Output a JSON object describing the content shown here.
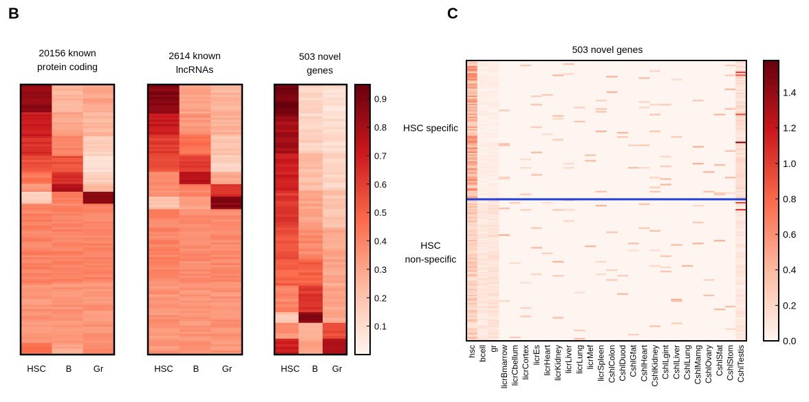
{
  "panels": {
    "b": {
      "letter": "B"
    },
    "c": {
      "letter": "C"
    }
  },
  "colors": {
    "scale_low": "#fff5f0",
    "scale_mid": "#fb6a4a",
    "scale_high": "#67000d",
    "separator": "#1f3fd6",
    "frame": "#000000"
  },
  "chart_data": [
    {
      "type": "heatmap",
      "title_lines": [
        "20156 known",
        "protein coding"
      ],
      "columns": [
        "HSC",
        "B",
        "Gr"
      ],
      "segments": [
        {
          "rows": 14,
          "values": [
            0.85,
            0.25,
            0.3
          ]
        },
        {
          "rows": 12,
          "values": [
            0.7,
            0.3,
            0.25
          ]
        },
        {
          "rows": 10,
          "values": [
            0.65,
            0.4,
            0.15
          ]
        },
        {
          "rows": 8,
          "values": [
            0.55,
            0.55,
            0.1
          ]
        },
        {
          "rows": 6,
          "values": [
            0.45,
            0.65,
            0.15
          ]
        },
        {
          "rows": 4,
          "values": [
            0.35,
            0.8,
            0.25
          ]
        },
        {
          "rows": 6,
          "values": [
            0.15,
            0.4,
            0.85
          ]
        },
        {
          "rows": 40,
          "values": [
            0.4,
            0.4,
            0.4
          ]
        },
        {
          "rows": 30,
          "values": [
            0.35,
            0.35,
            0.35
          ]
        },
        {
          "rows": 6,
          "values": [
            0.45,
            0.3,
            0.4
          ]
        }
      ],
      "vmin": 0.0,
      "vmax": 0.95
    },
    {
      "type": "heatmap",
      "title_lines": [
        "2614 known",
        "lncRNAs"
      ],
      "columns": [
        "HSC",
        "B",
        "Gr"
      ],
      "segments": [
        {
          "rows": 14,
          "values": [
            0.88,
            0.3,
            0.25
          ]
        },
        {
          "rows": 10,
          "values": [
            0.72,
            0.35,
            0.28
          ]
        },
        {
          "rows": 10,
          "values": [
            0.6,
            0.45,
            0.2
          ]
        },
        {
          "rows": 8,
          "values": [
            0.55,
            0.6,
            0.15
          ]
        },
        {
          "rows": 6,
          "values": [
            0.4,
            0.78,
            0.3
          ]
        },
        {
          "rows": 6,
          "values": [
            0.35,
            0.4,
            0.65
          ]
        },
        {
          "rows": 6,
          "values": [
            0.2,
            0.3,
            0.88
          ]
        },
        {
          "rows": 35,
          "values": [
            0.4,
            0.38,
            0.38
          ]
        },
        {
          "rows": 35,
          "values": [
            0.35,
            0.35,
            0.35
          ]
        }
      ],
      "vmin": 0.0,
      "vmax": 0.95
    },
    {
      "type": "heatmap",
      "title_lines": [
        "503 novel",
        "genes"
      ],
      "columns": [
        "HSC",
        "B",
        "Gr"
      ],
      "segments": [
        {
          "rows": 12,
          "values": [
            0.92,
            0.12,
            0.08
          ]
        },
        {
          "rows": 14,
          "values": [
            0.8,
            0.15,
            0.1
          ]
        },
        {
          "rows": 14,
          "values": [
            0.7,
            0.22,
            0.14
          ]
        },
        {
          "rows": 14,
          "values": [
            0.62,
            0.3,
            0.2
          ]
        },
        {
          "rows": 12,
          "values": [
            0.55,
            0.38,
            0.3
          ]
        },
        {
          "rows": 10,
          "values": [
            0.5,
            0.5,
            0.3
          ]
        },
        {
          "rows": 10,
          "values": [
            0.4,
            0.62,
            0.3
          ]
        },
        {
          "rows": 4,
          "values": [
            0.2,
            0.88,
            0.3
          ]
        },
        {
          "rows": 6,
          "values": [
            0.35,
            0.25,
            0.55
          ]
        },
        {
          "rows": 6,
          "values": [
            0.7,
            0.3,
            0.8
          ]
        }
      ],
      "vmin": 0.0,
      "vmax": 0.95,
      "colorbar_ticks": [
        0.1,
        0.2,
        0.3,
        0.4,
        0.5,
        0.6,
        0.7,
        0.8,
        0.9
      ],
      "colorbar_labels": [
        "0.1",
        "0.2",
        "0.3",
        "0.4",
        "0.5",
        "0.6",
        "0.7",
        "0.8",
        "0.9"
      ]
    },
    {
      "type": "heatmap",
      "title": "503 novel genes",
      "columns": [
        "hsc",
        "bcell",
        "gr",
        "licrBmarrow",
        "licrCbellum",
        "licrCortex",
        "licrEs",
        "licrHeart",
        "licrKidney",
        "licrLiver",
        "licrLung",
        "licrMef",
        "licrSpleen",
        "CshlColon",
        "CshlDuod",
        "CshlGfat",
        "CshlHeart",
        "CshlKidney",
        "CshlLgint",
        "CshlLiver",
        "CshlLung",
        "CshlMamg",
        "CshlOvary",
        "CshlSfat",
        "CshlStom",
        "CshlTestis"
      ],
      "row_groups": [
        {
          "label": "HSC specific",
          "rows": 250
        },
        {
          "label_lines": [
            "HSC",
            "non-specific"
          ],
          "rows": 253
        }
      ],
      "group_means": {
        "HSC specific": [
          0.45,
          0.05,
          0.05,
          0.03,
          0.03,
          0.03,
          0.03,
          0.03,
          0.03,
          0.03,
          0.03,
          0.03,
          0.03,
          0.03,
          0.03,
          0.03,
          0.03,
          0.03,
          0.03,
          0.03,
          0.03,
          0.03,
          0.03,
          0.03,
          0.03,
          0.15
        ],
        "HSC non-specific": [
          0.25,
          0.1,
          0.12,
          0.03,
          0.03,
          0.03,
          0.03,
          0.03,
          0.03,
          0.03,
          0.03,
          0.03,
          0.03,
          0.03,
          0.03,
          0.03,
          0.03,
          0.03,
          0.03,
          0.03,
          0.03,
          0.03,
          0.03,
          0.03,
          0.03,
          0.1
        ]
      },
      "vmin": 0.0,
      "vmax": 1.58,
      "colorbar_ticks": [
        0.0,
        0.2,
        0.4,
        0.6,
        0.8,
        1.0,
        1.2,
        1.4
      ],
      "colorbar_labels": [
        "0.0",
        "0.2",
        "0.4",
        "0.6",
        "0.8",
        "1.0",
        "1.2",
        "1.4"
      ]
    }
  ]
}
